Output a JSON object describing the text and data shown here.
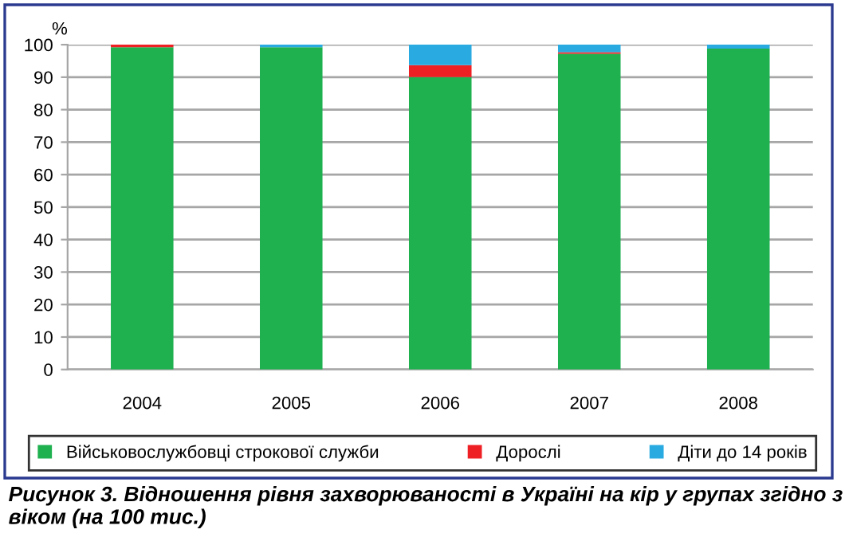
{
  "chart_data": {
    "type": "bar",
    "stacked": true,
    "ylabel": "%",
    "categories": [
      "2004",
      "2005",
      "2006",
      "2007",
      "2008"
    ],
    "series": [
      {
        "name": "Військовослужбовці строкової служби",
        "color": "#1fb050",
        "values": [
          99.2,
          99.2,
          90,
          97.2,
          98.8
        ]
      },
      {
        "name": "Дорослі",
        "color": "#ee2024",
        "values": [
          0.8,
          0,
          3.7,
          0.5,
          0
        ]
      },
      {
        "name": "Діти до 14 років",
        "color": "#29abe2",
        "values": [
          0,
          0.8,
          6.3,
          2.3,
          1.2
        ]
      }
    ],
    "ylim": [
      0,
      100
    ],
    "yticks": [
      0,
      10,
      20,
      30,
      40,
      50,
      60,
      70,
      80,
      90,
      100
    ],
    "grid": "y",
    "legend": "bottom",
    "annotations": [
      "Рисунок 3. Відношення рівня захворюваності в Україні на кір у групах згідно з віком (на 100 тис.)"
    ]
  }
}
